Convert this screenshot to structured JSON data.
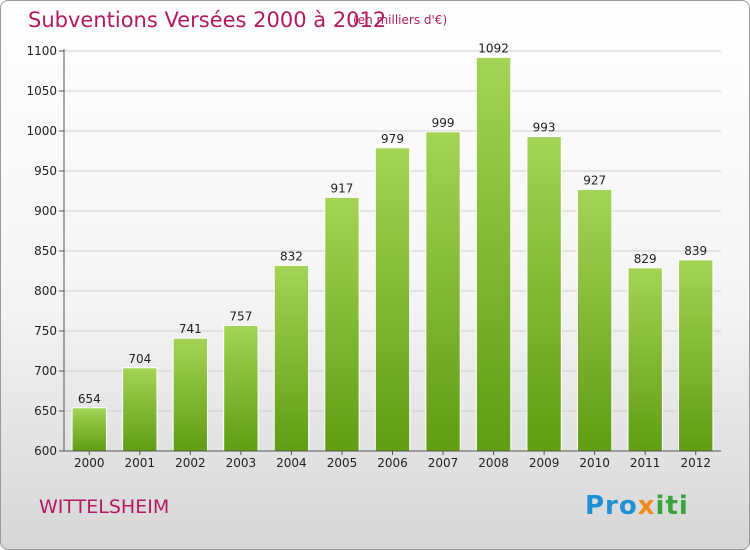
{
  "title": "Subventions Versées 2000 à 2012",
  "subtitle": "(en milliers d'€)",
  "town": "WITTELSHEIM",
  "logo": {
    "part1": "Pro",
    "part2": "x",
    "part3": "iti"
  },
  "colors": {
    "title": "#b5195f",
    "bar_top": "#a4d455",
    "bar_bottom": "#5f9d12",
    "grid": "#d0d0d0"
  },
  "chart_data": {
    "type": "bar",
    "title": "Subventions Versées 2000 à 2012",
    "subtitle": "(en milliers d'€)",
    "categories": [
      "2000",
      "2001",
      "2002",
      "2003",
      "2004",
      "2005",
      "2006",
      "2007",
      "2008",
      "2009",
      "2010",
      "2011",
      "2012"
    ],
    "values": [
      654,
      704,
      741,
      757,
      832,
      917,
      979,
      999,
      1092,
      993,
      927,
      829,
      839
    ],
    "ylim": [
      600,
      1100
    ],
    "yticks": [
      600,
      650,
      700,
      750,
      800,
      850,
      900,
      950,
      1000,
      1050,
      1100
    ],
    "grid": true,
    "data_labels": true
  }
}
